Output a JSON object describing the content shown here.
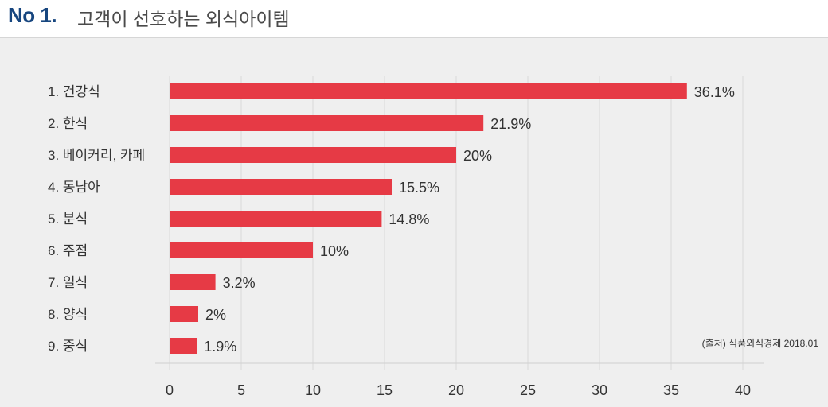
{
  "header": {
    "number": "No 1.",
    "title": "고객이 선호하는 외식아이템"
  },
  "source_note": "(출처) 식품외식경제 2018.01",
  "colors": {
    "bar": "#e63a45",
    "header_number": "#17467f",
    "panel_background": "#efefef",
    "gridline": "#d9d9d9",
    "text": "#333333"
  },
  "chart_data": {
    "type": "bar",
    "orientation": "horizontal",
    "categories": [
      "1. 건강식",
      "2. 한식",
      "3. 베이커리, 카페",
      "4. 동남아",
      "5. 분식",
      "6. 주점",
      "7. 일식",
      "8. 양식",
      "9. 중식"
    ],
    "values": [
      36.1,
      21.9,
      20,
      15.5,
      14.8,
      10,
      3.2,
      2,
      1.9
    ],
    "value_labels": [
      "36.1%",
      "21.9%",
      "20%",
      "15.5%",
      "14.8%",
      "10%",
      "3.2%",
      "2%",
      "1.9%"
    ],
    "xlim": [
      0,
      40
    ],
    "xticks": [
      0,
      5,
      10,
      15,
      20,
      25,
      30,
      35,
      40
    ],
    "grid": true
  }
}
